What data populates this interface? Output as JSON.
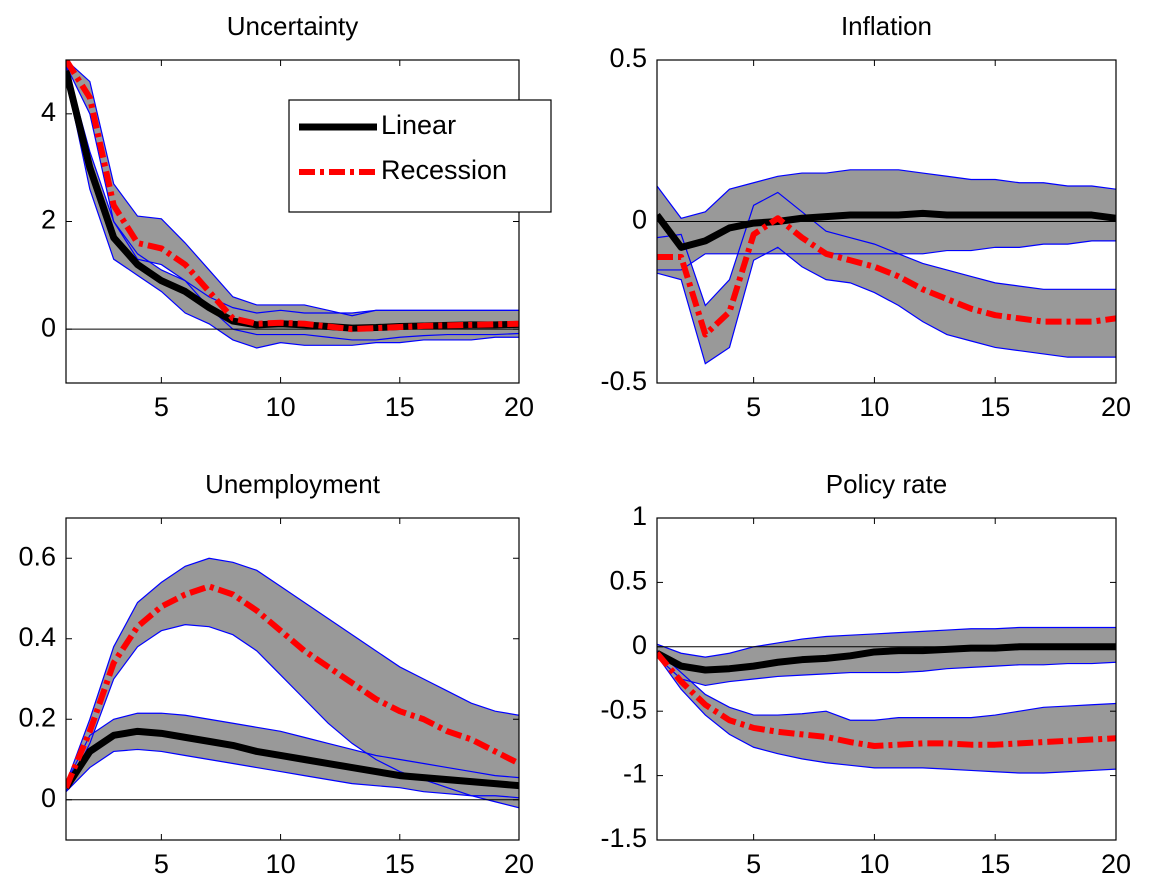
{
  "chart_data": [
    {
      "type": "line",
      "title": "Uncertainty",
      "legend": "upper right",
      "x": [
        1,
        2,
        3,
        4,
        5,
        6,
        7,
        8,
        9,
        10,
        11,
        12,
        13,
        14,
        15,
        16,
        17,
        18,
        19,
        20
      ],
      "xlim": [
        1,
        20
      ],
      "xticks": [
        5,
        10,
        15,
        20
      ],
      "ylim": [
        -1,
        5
      ],
      "yticks": [
        0,
        2,
        4
      ],
      "band_color": "#999999",
      "band_edge_color": "#0000ff",
      "series": [
        {
          "name": "Linear",
          "color": "#000000",
          "values": [
            4.8,
            3.0,
            1.7,
            1.2,
            0.9,
            0.7,
            0.4,
            0.15,
            0.08,
            0.1,
            0.08,
            0.05,
            0.02,
            0.03,
            0.05,
            0.06,
            0.07,
            0.08,
            0.08,
            0.09
          ],
          "lower": [
            4.7,
            2.6,
            1.3,
            1.0,
            0.7,
            0.3,
            0.1,
            -0.2,
            -0.35,
            -0.25,
            -0.3,
            -0.3,
            -0.3,
            -0.25,
            -0.25,
            -0.2,
            -0.2,
            -0.2,
            -0.15,
            -0.15
          ],
          "upper": [
            4.9,
            3.3,
            2.0,
            1.4,
            1.1,
            0.9,
            0.6,
            0.4,
            0.3,
            0.35,
            0.3,
            0.3,
            0.3,
            0.35,
            0.35,
            0.35,
            0.35,
            0.35,
            0.35,
            0.35
          ]
        },
        {
          "name": "Recession",
          "color": "#ff0000",
          "values": [
            5.0,
            4.3,
            2.3,
            1.6,
            1.5,
            1.2,
            0.7,
            0.2,
            0.1,
            0.12,
            0.1,
            0.05,
            0.0,
            0.02,
            0.04,
            0.06,
            0.07,
            0.08,
            0.09,
            0.1
          ],
          "lower": [
            4.9,
            4.0,
            2.0,
            1.3,
            1.2,
            0.9,
            0.4,
            0.0,
            -0.1,
            -0.1,
            -0.1,
            -0.15,
            -0.2,
            -0.2,
            -0.15,
            -0.12,
            -0.1,
            -0.1,
            -0.1,
            -0.08
          ],
          "upper": [
            5.0,
            4.6,
            2.7,
            2.1,
            2.05,
            1.6,
            1.1,
            0.6,
            0.45,
            0.45,
            0.45,
            0.35,
            0.25,
            0.35,
            0.35,
            0.35,
            0.35,
            0.35,
            0.35,
            0.35
          ]
        }
      ]
    },
    {
      "type": "line",
      "title": "Inflation",
      "x": [
        1,
        2,
        3,
        4,
        5,
        6,
        7,
        8,
        9,
        10,
        11,
        12,
        13,
        14,
        15,
        16,
        17,
        18,
        19,
        20
      ],
      "xlim": [
        1,
        20
      ],
      "xticks": [
        5,
        10,
        15,
        20
      ],
      "ylim": [
        -0.5,
        0.5
      ],
      "yticks": [
        -0.5,
        0,
        0.5
      ],
      "band_color": "#999999",
      "band_edge_color": "#0000ff",
      "series": [
        {
          "color": "#000000",
          "values": [
            0.02,
            -0.08,
            -0.06,
            -0.02,
            -0.005,
            0.0,
            0.01,
            0.015,
            0.02,
            0.02,
            0.02,
            0.025,
            0.02,
            0.02,
            0.02,
            0.02,
            0.02,
            0.02,
            0.02,
            0.01
          ],
          "lower": [
            -0.15,
            -0.15,
            -0.1,
            -0.1,
            -0.1,
            -0.1,
            -0.1,
            -0.1,
            -0.1,
            -0.1,
            -0.1,
            -0.1,
            -0.09,
            -0.09,
            -0.08,
            -0.08,
            -0.07,
            -0.07,
            -0.06,
            -0.06
          ],
          "upper": [
            0.11,
            0.01,
            0.03,
            0.1,
            0.12,
            0.14,
            0.15,
            0.15,
            0.16,
            0.16,
            0.16,
            0.15,
            0.14,
            0.13,
            0.13,
            0.12,
            0.12,
            0.11,
            0.11,
            0.1
          ]
        },
        {
          "color": "#ff0000",
          "values": [
            -0.11,
            -0.11,
            -0.35,
            -0.28,
            -0.04,
            0.01,
            -0.05,
            -0.1,
            -0.12,
            -0.14,
            -0.17,
            -0.21,
            -0.24,
            -0.27,
            -0.29,
            -0.3,
            -0.31,
            -0.31,
            -0.31,
            -0.3
          ],
          "lower": [
            -0.16,
            -0.18,
            -0.44,
            -0.39,
            -0.12,
            -0.08,
            -0.14,
            -0.18,
            -0.19,
            -0.22,
            -0.26,
            -0.31,
            -0.35,
            -0.37,
            -0.39,
            -0.4,
            -0.41,
            -0.42,
            -0.42,
            -0.42
          ],
          "upper": [
            -0.05,
            -0.04,
            -0.26,
            -0.18,
            0.05,
            0.09,
            0.03,
            -0.03,
            -0.05,
            -0.07,
            -0.1,
            -0.13,
            -0.15,
            -0.17,
            -0.19,
            -0.2,
            -0.21,
            -0.21,
            -0.21,
            -0.21
          ]
        }
      ]
    },
    {
      "type": "line",
      "title": "Unemployment",
      "x": [
        1,
        2,
        3,
        4,
        5,
        6,
        7,
        8,
        9,
        10,
        11,
        12,
        13,
        14,
        15,
        16,
        17,
        18,
        19,
        20
      ],
      "xlim": [
        1,
        20
      ],
      "xticks": [
        5,
        10,
        15,
        20
      ],
      "ylim": [
        -0.1,
        0.7
      ],
      "yticks": [
        0,
        0.2,
        0.4,
        0.6
      ],
      "band_color": "#999999",
      "band_edge_color": "#0000ff",
      "series": [
        {
          "color": "#000000",
          "values": [
            0.03,
            0.12,
            0.16,
            0.17,
            0.165,
            0.155,
            0.145,
            0.135,
            0.12,
            0.11,
            0.1,
            0.09,
            0.08,
            0.07,
            0.06,
            0.055,
            0.05,
            0.045,
            0.04,
            0.035
          ],
          "lower": [
            0.02,
            0.08,
            0.12,
            0.125,
            0.12,
            0.11,
            0.1,
            0.09,
            0.08,
            0.07,
            0.06,
            0.05,
            0.04,
            0.035,
            0.03,
            0.02,
            0.015,
            0.01,
            0.01,
            0.005
          ],
          "upper": [
            0.04,
            0.16,
            0.2,
            0.215,
            0.215,
            0.21,
            0.2,
            0.19,
            0.18,
            0.17,
            0.155,
            0.14,
            0.125,
            0.11,
            0.1,
            0.09,
            0.08,
            0.07,
            0.06,
            0.055
          ]
        },
        {
          "color": "#ff0000",
          "values": [
            0.03,
            0.17,
            0.34,
            0.43,
            0.48,
            0.51,
            0.53,
            0.51,
            0.47,
            0.42,
            0.37,
            0.33,
            0.29,
            0.25,
            0.22,
            0.2,
            0.17,
            0.15,
            0.12,
            0.09
          ],
          "lower": [
            0.02,
            0.14,
            0.3,
            0.38,
            0.42,
            0.435,
            0.43,
            0.41,
            0.37,
            0.31,
            0.25,
            0.19,
            0.14,
            0.1,
            0.07,
            0.05,
            0.03,
            0.01,
            -0.005,
            -0.02
          ],
          "upper": [
            0.04,
            0.2,
            0.38,
            0.49,
            0.54,
            0.58,
            0.6,
            0.59,
            0.57,
            0.53,
            0.49,
            0.45,
            0.41,
            0.37,
            0.33,
            0.3,
            0.27,
            0.24,
            0.22,
            0.21
          ]
        }
      ]
    },
    {
      "type": "line",
      "title": "Policy rate",
      "x": [
        1,
        2,
        3,
        4,
        5,
        6,
        7,
        8,
        9,
        10,
        11,
        12,
        13,
        14,
        15,
        16,
        17,
        18,
        19,
        20
      ],
      "xlim": [
        1,
        20
      ],
      "xticks": [
        5,
        10,
        15,
        20
      ],
      "ylim": [
        -1.5,
        1
      ],
      "yticks": [
        -1.5,
        -1,
        -0.5,
        0,
        0.5,
        1
      ],
      "band_color": "#999999",
      "band_edge_color": "#0000ff",
      "series": [
        {
          "color": "#000000",
          "values": [
            -0.05,
            -0.15,
            -0.18,
            -0.17,
            -0.15,
            -0.12,
            -0.1,
            -0.09,
            -0.07,
            -0.04,
            -0.03,
            -0.03,
            -0.02,
            -0.01,
            -0.01,
            0,
            0,
            0,
            0,
            0
          ],
          "lower": [
            -0.08,
            -0.25,
            -0.3,
            -0.27,
            -0.25,
            -0.23,
            -0.22,
            -0.21,
            -0.2,
            -0.2,
            -0.2,
            -0.19,
            -0.17,
            -0.16,
            -0.15,
            -0.14,
            -0.14,
            -0.13,
            -0.13,
            -0.12
          ],
          "upper": [
            0.02,
            -0.05,
            -0.08,
            -0.05,
            0.0,
            0.03,
            0.06,
            0.08,
            0.09,
            0.1,
            0.11,
            0.12,
            0.13,
            0.14,
            0.14,
            0.15,
            0.15,
            0.15,
            0.15,
            0.15
          ]
        },
        {
          "color": "#ff0000",
          "values": [
            -0.05,
            -0.27,
            -0.45,
            -0.57,
            -0.63,
            -0.66,
            -0.68,
            -0.7,
            -0.74,
            -0.77,
            -0.76,
            -0.75,
            -0.75,
            -0.76,
            -0.76,
            -0.75,
            -0.74,
            -0.73,
            -0.72,
            -0.71
          ],
          "lower": [
            -0.07,
            -0.33,
            -0.53,
            -0.68,
            -0.78,
            -0.83,
            -0.87,
            -0.9,
            -0.92,
            -0.94,
            -0.94,
            -0.94,
            -0.95,
            -0.96,
            -0.97,
            -0.98,
            -0.98,
            -0.97,
            -0.96,
            -0.95
          ],
          "upper": [
            -0.03,
            -0.2,
            -0.37,
            -0.47,
            -0.53,
            -0.53,
            -0.52,
            -0.5,
            -0.57,
            -0.57,
            -0.55,
            -0.55,
            -0.55,
            -0.55,
            -0.53,
            -0.5,
            -0.47,
            -0.46,
            -0.45,
            -0.44
          ]
        }
      ]
    }
  ]
}
